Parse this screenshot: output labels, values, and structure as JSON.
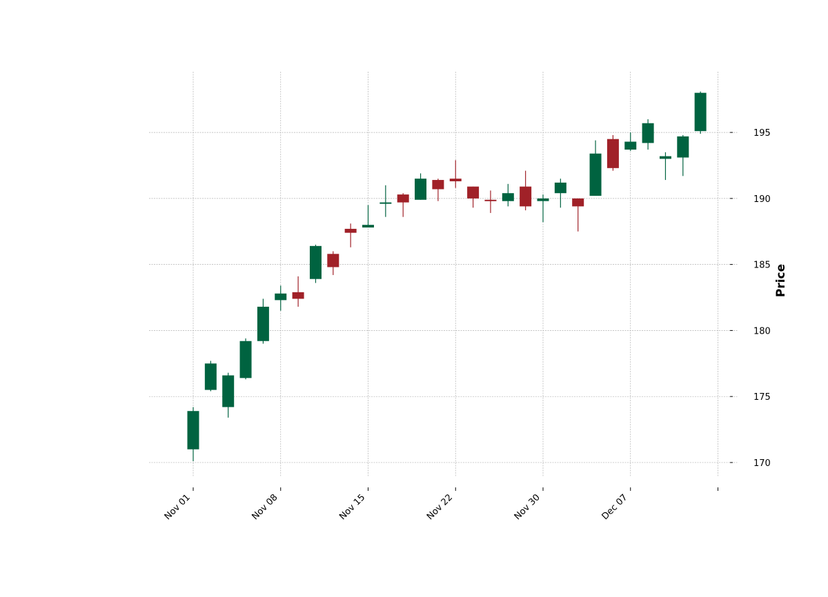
{
  "chart_data": {
    "type": "candlestick",
    "title": "",
    "xlabel": "",
    "ylabel": "Price",
    "ylim": [
      168.9,
      199.6
    ],
    "grid": true,
    "colors": {
      "up": "#006340",
      "down": "#a02128",
      "grid": "#b0b0b0",
      "text": "#000000"
    },
    "y_ticks": [
      170,
      175,
      180,
      185,
      190,
      195
    ],
    "x_ticks": [
      {
        "index": 0,
        "label": "Nov 01"
      },
      {
        "index": 5,
        "label": "Nov 08"
      },
      {
        "index": 10,
        "label": "Nov 15"
      },
      {
        "index": 15,
        "label": "Nov 22"
      },
      {
        "index": 20,
        "label": "Nov 30"
      },
      {
        "index": 25,
        "label": "Dec 07"
      },
      {
        "index": 30,
        "label": ""
      }
    ],
    "candles": [
      {
        "open": 171.0,
        "high": 174.2,
        "low": 170.1,
        "close": 173.9
      },
      {
        "open": 175.5,
        "high": 177.7,
        "low": 175.4,
        "close": 177.5
      },
      {
        "open": 174.2,
        "high": 176.8,
        "low": 173.4,
        "close": 176.6
      },
      {
        "open": 176.4,
        "high": 179.4,
        "low": 176.3,
        "close": 179.2
      },
      {
        "open": 179.2,
        "high": 182.4,
        "low": 179.0,
        "close": 181.8
      },
      {
        "open": 182.3,
        "high": 183.4,
        "low": 181.5,
        "close": 182.8
      },
      {
        "open": 182.9,
        "high": 184.1,
        "low": 181.8,
        "close": 182.4
      },
      {
        "open": 183.9,
        "high": 186.5,
        "low": 183.6,
        "close": 186.4
      },
      {
        "open": 185.8,
        "high": 186.0,
        "low": 184.2,
        "close": 184.8
      },
      {
        "open": 187.7,
        "high": 188.1,
        "low": 186.3,
        "close": 187.4
      },
      {
        "open": 187.8,
        "high": 189.5,
        "low": 187.8,
        "close": 188.0
      },
      {
        "open": 189.6,
        "high": 191.0,
        "low": 188.6,
        "close": 189.7
      },
      {
        "open": 190.3,
        "high": 190.4,
        "low": 188.6,
        "close": 189.7
      },
      {
        "open": 189.9,
        "high": 191.9,
        "low": 189.9,
        "close": 191.5
      },
      {
        "open": 191.4,
        "high": 191.5,
        "low": 189.8,
        "close": 190.7
      },
      {
        "open": 191.5,
        "high": 192.9,
        "low": 190.8,
        "close": 191.3
      },
      {
        "open": 190.9,
        "high": 190.9,
        "low": 189.3,
        "close": 190.0
      },
      {
        "open": 189.9,
        "high": 190.6,
        "low": 188.9,
        "close": 189.8
      },
      {
        "open": 189.8,
        "high": 191.1,
        "low": 189.4,
        "close": 190.4
      },
      {
        "open": 190.9,
        "high": 192.1,
        "low": 189.1,
        "close": 189.4
      },
      {
        "open": 189.8,
        "high": 190.3,
        "low": 188.2,
        "close": 190.0
      },
      {
        "open": 190.4,
        "high": 191.5,
        "low": 189.3,
        "close": 191.2
      },
      {
        "open": 190.0,
        "high": 190.0,
        "low": 187.5,
        "close": 189.4
      },
      {
        "open": 190.2,
        "high": 194.4,
        "low": 190.2,
        "close": 193.4
      },
      {
        "open": 194.5,
        "high": 194.8,
        "low": 192.1,
        "close": 192.3
      },
      {
        "open": 193.7,
        "high": 195.0,
        "low": 193.6,
        "close": 194.3
      },
      {
        "open": 194.2,
        "high": 196.0,
        "low": 193.7,
        "close": 195.7
      },
      {
        "open": 193.0,
        "high": 193.5,
        "low": 191.4,
        "close": 193.2
      },
      {
        "open": 193.1,
        "high": 194.8,
        "low": 191.7,
        "close": 194.7
      },
      {
        "open": 195.1,
        "high": 198.1,
        "low": 194.9,
        "close": 198.0
      }
    ]
  }
}
